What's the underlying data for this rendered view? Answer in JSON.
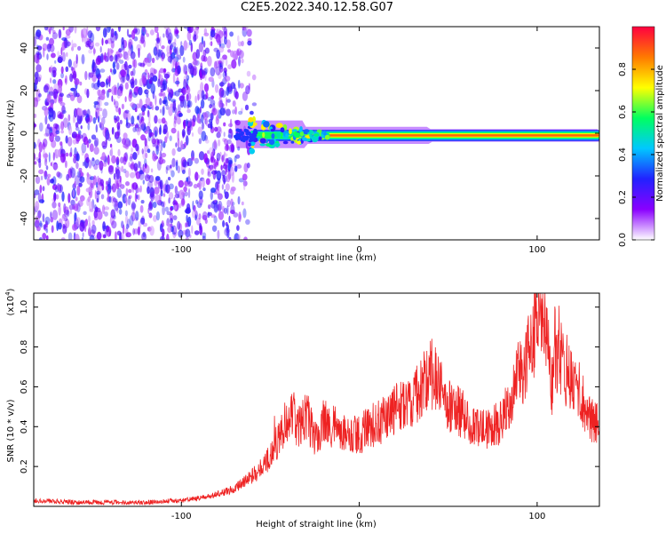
{
  "title": "C2E5.2022.340.12.58.G07",
  "chart_data": [
    {
      "type": "heatmap",
      "xlabel": "Height of straight line (km)",
      "ylabel": "Frequency (Hz)",
      "xlim": [
        -183,
        135
      ],
      "ylim": [
        -50,
        50
      ],
      "xticks": [
        -100,
        0,
        100
      ],
      "yticks": [
        -40,
        -20,
        0,
        20,
        40
      ],
      "colorbar": {
        "label": "Normalized spectral amplitude",
        "range": [
          0,
          1
        ],
        "ticks": [
          0.0,
          0.2,
          0.4,
          0.6,
          0.8
        ],
        "colors": [
          "#ffffff",
          "#8a00ff",
          "#2222ff",
          "#00c8ff",
          "#00ff60",
          "#ffff00",
          "#ff7a00",
          "#ff0040"
        ]
      },
      "features": {
        "noise_region_x": [
          -183,
          -58
        ],
        "signal_onset_x": -70,
        "signal_center_hz": -1,
        "early_signal_spread_hz": [
          -6,
          10
        ]
      }
    },
    {
      "type": "line",
      "xlabel": "Height of straight line (km)",
      "ylabel": "SNR (10 * v/v)",
      "ylabel_scale": "(x10",
      "ylabel_exponent": "4",
      "xlim": [
        -183,
        135
      ],
      "ylim": [
        0,
        1.07
      ],
      "xticks": [
        -100,
        0,
        100
      ],
      "yticks": [
        0.2,
        0.4,
        0.6,
        0.8,
        1.0
      ],
      "color": "#ee2222",
      "series": [
        {
          "x": [
            -183,
            -160,
            -140,
            -120,
            -100,
            -90,
            -80,
            -70,
            -60,
            -50,
            -45,
            -40,
            -38,
            -35,
            -30,
            -25,
            -20,
            -10,
            0,
            10,
            20,
            30,
            35,
            40,
            45,
            50,
            60,
            65,
            70,
            80,
            88,
            95,
            100,
            102,
            104,
            106,
            108,
            110,
            115,
            120,
            125,
            130,
            135
          ],
          "y": [
            0.03,
            0.02,
            0.02,
            0.02,
            0.03,
            0.04,
            0.06,
            0.09,
            0.15,
            0.25,
            0.35,
            0.45,
            0.5,
            0.38,
            0.45,
            0.35,
            0.42,
            0.38,
            0.36,
            0.42,
            0.48,
            0.55,
            0.6,
            0.68,
            0.62,
            0.5,
            0.46,
            0.4,
            0.38,
            0.42,
            0.62,
            0.78,
            0.88,
            1.0,
            0.92,
            0.78,
            0.6,
            0.8,
            0.72,
            0.62,
            0.55,
            0.45,
            0.4
          ]
        }
      ]
    }
  ]
}
